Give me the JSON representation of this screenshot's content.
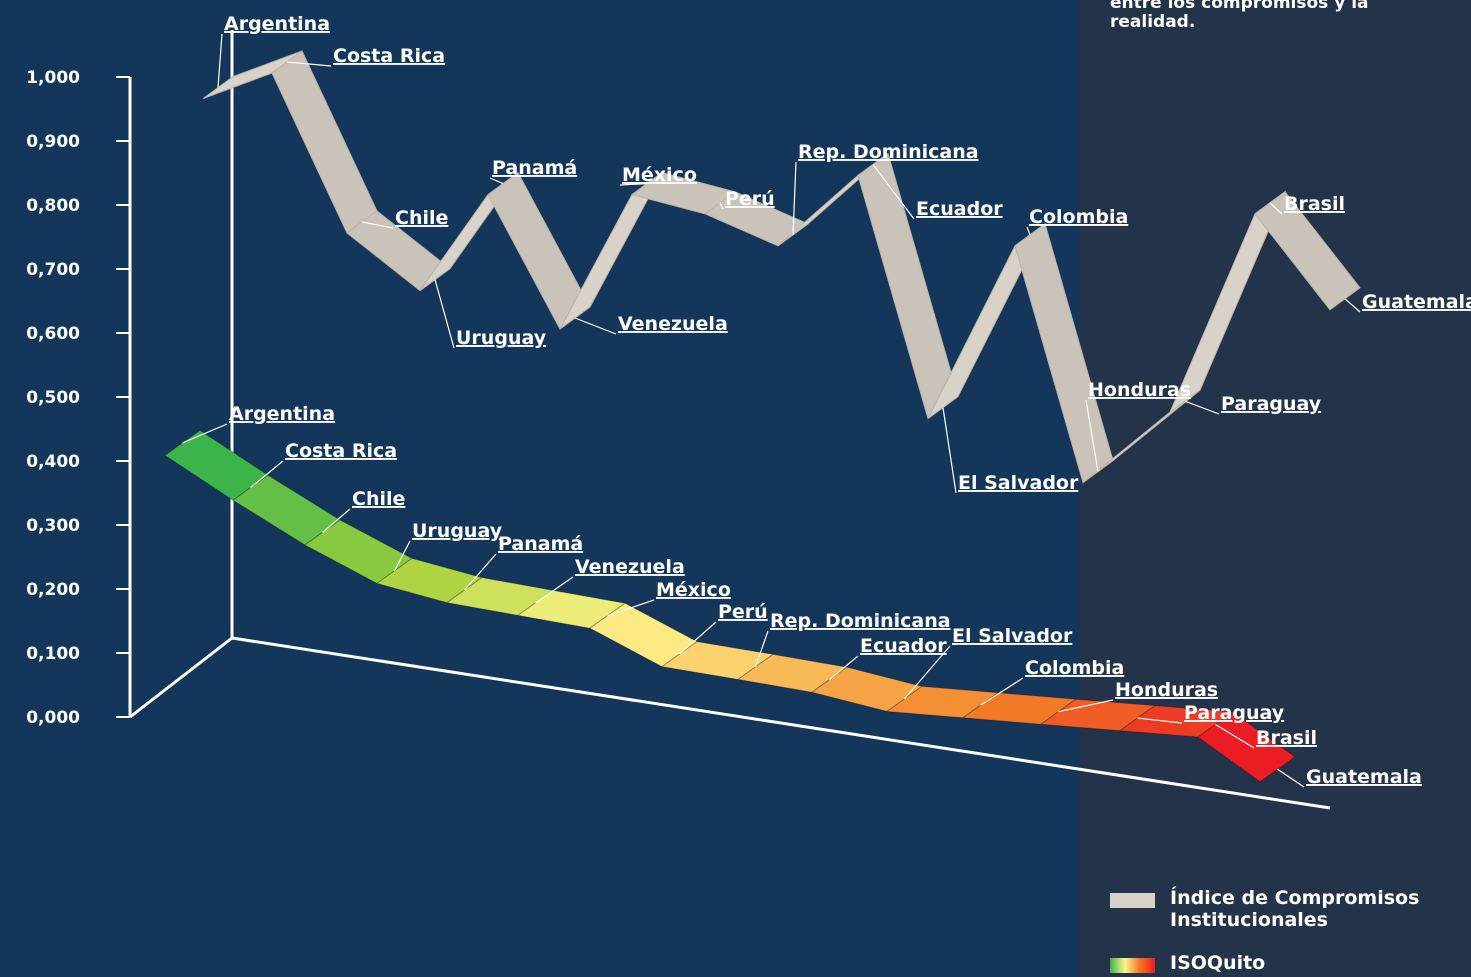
{
  "panel_note": "entre los compromisos y la realidad.",
  "colors": {
    "background": "#14365a",
    "panel": "#233349",
    "ribbon_top": "#d8d2c9",
    "ribbon_front": "#c9c3b9",
    "iso_gradient": [
      "#3cb44a",
      "#a8d23c",
      "#fff48a",
      "#f7b04f",
      "#f27623",
      "#ec1c24"
    ]
  },
  "legend": [
    {
      "label": "Índice de Compromisos Institucionales",
      "swatch": "gray"
    },
    {
      "label": "ISOQuito",
      "swatch": "gradient"
    }
  ],
  "chart_data": {
    "type": "line",
    "ylim": [
      0,
      1
    ],
    "y_ticks": [
      "0,000",
      "0,100",
      "0,200",
      "0,300",
      "0,400",
      "0,500",
      "0,600",
      "0,700",
      "0,800",
      "0,900",
      "1,000"
    ],
    "series": [
      {
        "name": "Índice de Compromisos Institucionales",
        "categories": [
          "Argentina",
          "Costa Rica",
          "Chile",
          "Uruguay",
          "Panamá",
          "Venezuela",
          "México",
          "Perú",
          "Rep. Dominicana",
          "Ecuador",
          "El Salvador",
          "Colombia",
          "Honduras",
          "Paraguay",
          "Brasil",
          "Guatemala"
        ],
        "values": [
          0.96,
          1.0,
          0.75,
          0.66,
          0.81,
          0.6,
          0.81,
          0.78,
          0.73,
          0.84,
          0.46,
          0.73,
          0.36,
          0.47,
          0.78,
          0.63
        ]
      },
      {
        "name": "ISOQuito",
        "categories": [
          "Argentina",
          "Costa Rica",
          "Chile",
          "Uruguay",
          "Panamá",
          "Venezuela",
          "México",
          "Perú",
          "Rep. Dominicana",
          "Ecuador",
          "El Salvador",
          "Colombia",
          "Honduras",
          "Paraguay",
          "Brasil",
          "Guatemala"
        ],
        "values": [
          0.44,
          0.37,
          0.3,
          0.24,
          0.21,
          0.19,
          0.17,
          0.11,
          0.09,
          0.07,
          0.04,
          0.03,
          0.02,
          0.01,
          0.0,
          -0.07
        ]
      }
    ]
  }
}
